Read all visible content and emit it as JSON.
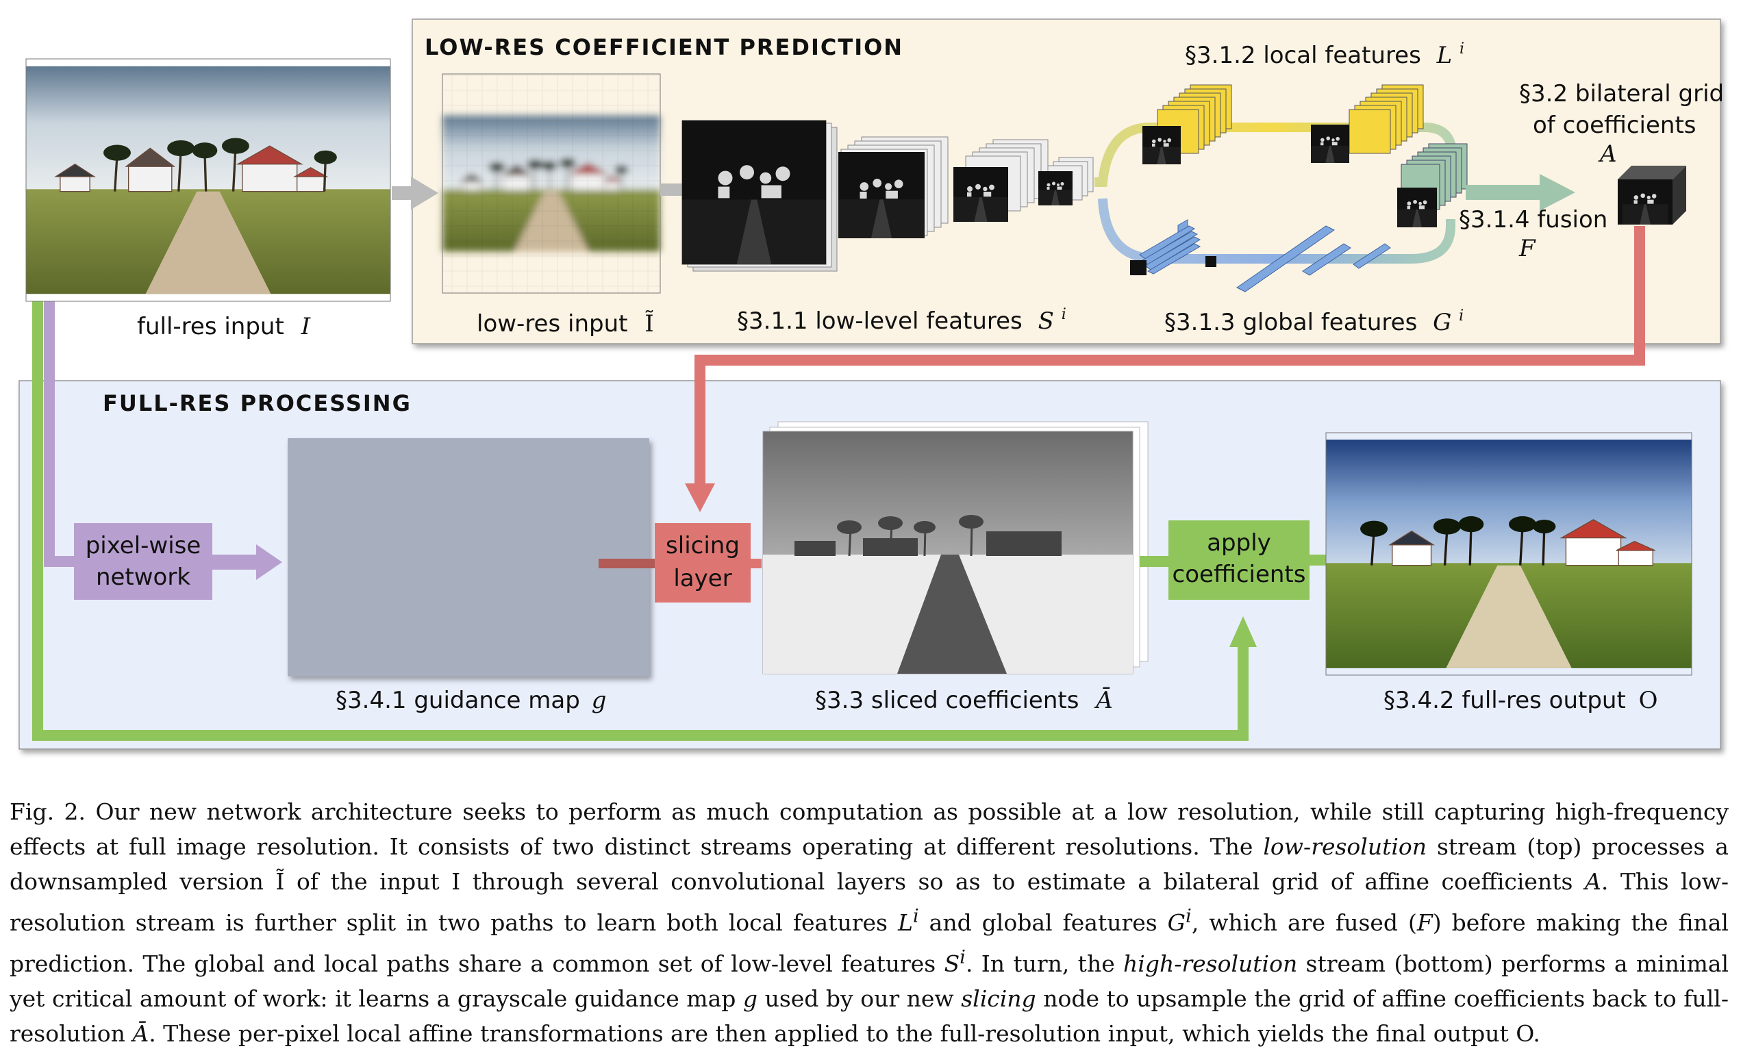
{
  "sections": {
    "low_res_title": "LOW-RES COEFFICIENT PREDICTION",
    "full_res_title": "FULL-RES PROCESSING"
  },
  "labels": {
    "full_res_input": "full-res input",
    "full_res_input_sym": "I",
    "low_res_input": "low-res input",
    "low_res_input_sym": "Ĩ",
    "low_level": "§3.1.1 low-level features",
    "low_level_sym": "S",
    "local": "§3.1.2 local features",
    "local_sym": "L",
    "global": "§3.1.3 global features",
    "global_sym": "G",
    "sup_i": "i",
    "fusion": "§3.1.4 fusion",
    "fusion_sym": "F",
    "grid_line1": "§3.2 bilateral grid",
    "grid_line2": "of coefficients",
    "grid_sym": "A",
    "guidance": "§3.4.1 guidance map",
    "guidance_sym": "g",
    "sliced": "§3.3 sliced coefficients",
    "sliced_sym": "Ā",
    "output": "§3.4.2 full-res output",
    "output_sym": "O"
  },
  "boxes": {
    "pixel_wise_1": "pixel-wise",
    "pixel_wise_2": "network",
    "slicing_1": "slicing",
    "slicing_2": "layer",
    "apply_1": "apply",
    "apply_2": "coefficients"
  },
  "colors": {
    "low_res_panel": "#fbf3e3",
    "full_res_panel": "#e9eefb",
    "purple": "#b7a0cf",
    "red": "#dd7672",
    "green": "#8fc55a",
    "gray_arrow": "#bbbbbb",
    "yellow": "#f5d63d",
    "blue": "#7ea7e0",
    "teal": "#9fc6ad"
  },
  "caption": {
    "fig": "Fig. 2.",
    "s1": "Our new network architecture seeks to perform as much computation as possible at a low resolution, while still capturing high-frequency effects at full image resolution. It consists of two distinct streams operating at different resolutions. The",
    "low_resolution": "low-resolution",
    "s2": "stream (top) processes a downsampled version",
    "s3": "of the input I through several convolutional layers so as to estimate a bilateral grid of affine coefficients",
    "s4": ". This low-resolution stream is further split in two paths to learn both local features",
    "s5": "and global features",
    "s6": ", which are fused (",
    "s7": ") before making the final prediction. The global and local paths share a common set of low-level features",
    "s8": ". In turn, the",
    "high_resolution": "high-resolution",
    "s9": "stream (bottom) performs a minimal yet critical amount of work: it learns a grayscale guidance map",
    "s10": "used by our new",
    "slicing": "slicing",
    "s11": "node to upsample the grid of affine coefficients back to full-resolution",
    "s12": ". These per-pixel local affine transformations are then applied to the full-resolution input, which yields the final output O."
  }
}
